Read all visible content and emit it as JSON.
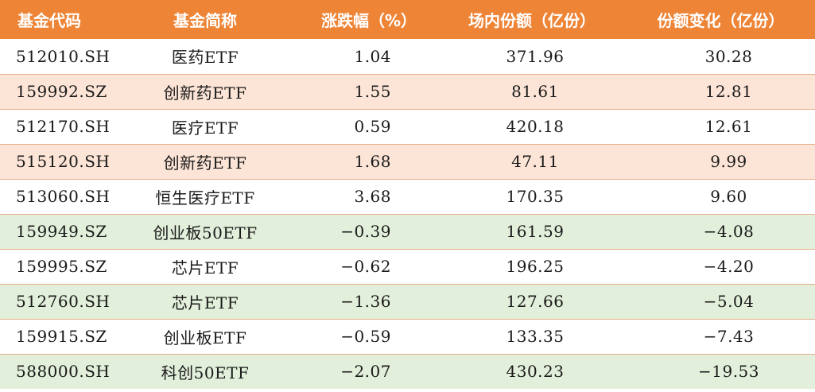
{
  "table": {
    "headers": {
      "code": "基金代码",
      "name": "基金简称",
      "change_pct": "涨跌幅（%）",
      "shares": "场内份额（亿份）",
      "shares_change": "份额变化（亿份）"
    },
    "rows": [
      {
        "code": "512010.SH",
        "name": "医药ETF",
        "change_pct": "1.04",
        "shares": "371.96",
        "shares_change": "30.28"
      },
      {
        "code": "159992.SZ",
        "name": "创新药ETF",
        "change_pct": "1.55",
        "shares": "81.61",
        "shares_change": "12.81"
      },
      {
        "code": "512170.SH",
        "name": "医疗ETF",
        "change_pct": "0.59",
        "shares": "420.18",
        "shares_change": "12.61"
      },
      {
        "code": "515120.SH",
        "name": "创新药ETF",
        "change_pct": "1.68",
        "shares": "47.11",
        "shares_change": "9.99"
      },
      {
        "code": "513060.SH",
        "name": "恒生医疗ETF",
        "change_pct": "3.68",
        "shares": "170.35",
        "shares_change": "9.60"
      },
      {
        "code": "159949.SZ",
        "name": "创业板50ETF",
        "change_pct": "−0.39",
        "shares": "161.59",
        "shares_change": "−4.08"
      },
      {
        "code": "159995.SZ",
        "name": "芯片ETF",
        "change_pct": "−0.62",
        "shares": "196.25",
        "shares_change": "−4.20"
      },
      {
        "code": "512760.SH",
        "name": "芯片ETF",
        "change_pct": "−1.36",
        "shares": "127.66",
        "shares_change": "−5.04"
      },
      {
        "code": "159915.SZ",
        "name": "创业板ETF",
        "change_pct": "−0.59",
        "shares": "133.35",
        "shares_change": "−7.43"
      },
      {
        "code": "588000.SH",
        "name": "科创50ETF",
        "change_pct": "−2.07",
        "shares": "430.23",
        "shares_change": "−19.53"
      }
    ]
  },
  "colors": {
    "header_bg": "#ee8436",
    "header_text": "#ffffff",
    "row_up_bg": "#fce4d6",
    "row_down_bg": "#e2efda",
    "row_plain_bg": "#ffffff",
    "row_divider": "#e7b08a"
  }
}
